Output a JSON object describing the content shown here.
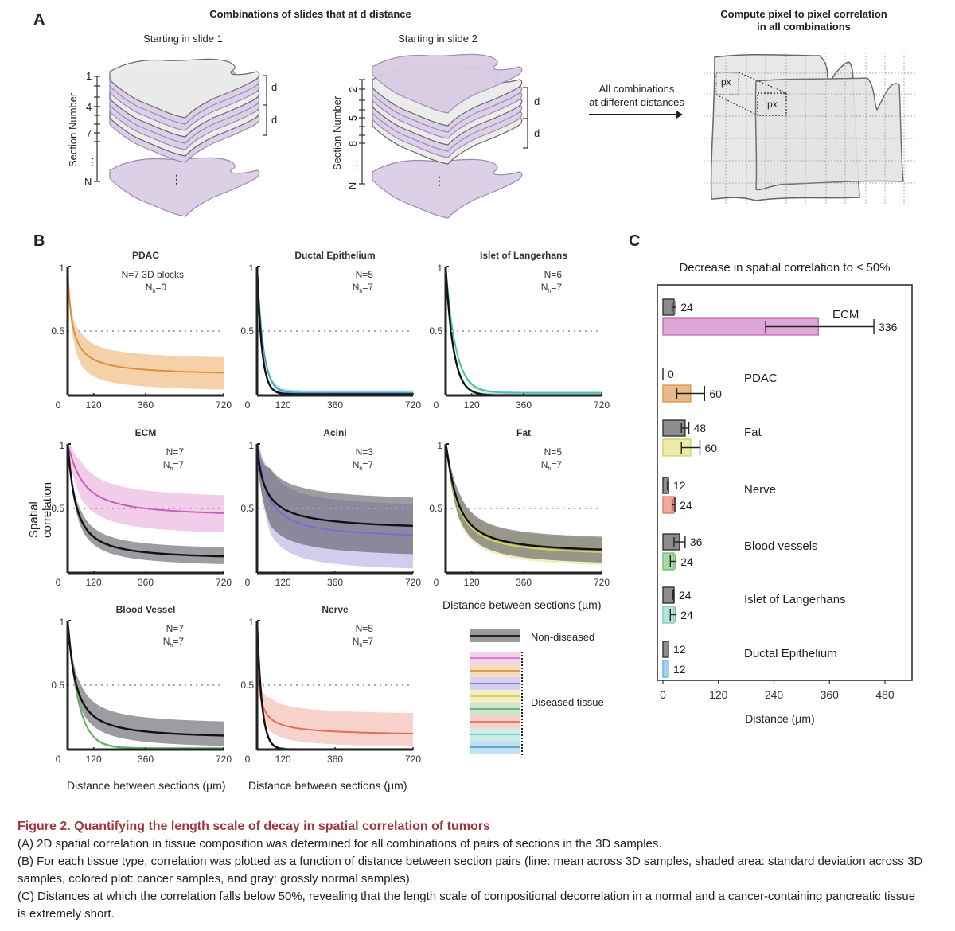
{
  "panel_a": {
    "letter": "A",
    "title_left": "Combinations of slides that at d distance",
    "stack1_title": "Starting in slide 1",
    "stack2_title": "Starting in slide 2",
    "section_axis_label": "Section Number",
    "stack1_ticks": [
      "1",
      "4",
      "7",
      "⋮",
      "N"
    ],
    "stack2_ticks": [
      "2",
      "5",
      "8",
      "⋮",
      "N"
    ],
    "d_label": "d",
    "arrow_text_line1": "All combinations",
    "arrow_text_line2": "at different distances",
    "title_right_line1": "Compute pixel to pixel correlation",
    "title_right_line2": "in all combinations",
    "px_label": "px"
  },
  "panel_b": {
    "letter": "B",
    "ylabel": "Spatial correlation",
    "xlabel": "Distance between sections (µm)",
    "legend": {
      "non_diseased": "Non-diseased",
      "diseased": "Diseased tissue",
      "diseased_colors": [
        "#d77fc8",
        "#e09a4a",
        "#8a78d0",
        "#d8d45a",
        "#6fb46f",
        "#e57a6a",
        "#6fc8b8",
        "#5aa8d8"
      ]
    }
  },
  "chart_data": [
    {
      "type": "line",
      "title": "PDAC",
      "note_n": "N=7 3D blocks",
      "note_nh": "N",
      "note_nh_sub": "h",
      "note_nh_val": "=0",
      "color": "#d9913a",
      "band_color": "#f2c99a",
      "x": [
        0,
        120,
        360,
        720
      ],
      "xticks": [
        "0",
        "120",
        "360",
        "720"
      ],
      "yticks": [
        "0.5",
        "1"
      ],
      "ylim": [
        0,
        1
      ],
      "xlim": [
        0,
        720
      ],
      "reference_line": 0.5,
      "series": [
        {
          "name": "Diseased",
          "mean": {
            "a": 0.12,
            "d0": 1.0,
            "tau": 25,
            "tail": 0.78
          },
          "band": [
            {
              "lo": 0.01,
              "hi": 0.26
            }
          ]
        }
      ],
      "diseased": {
        "start": 1.0,
        "end": 0.15,
        "at120": 0.28,
        "at360": 0.2,
        "band_lo_end": 0.02,
        "band_hi_end": 0.27
      },
      "non_diseased": null
    },
    {
      "type": "line",
      "title": "Ductal Epithelium",
      "note_n": "N=5",
      "note_nh": "N",
      "note_nh_sub": "h",
      "note_nh_val": "=7",
      "color": "#4aa3d8",
      "band_color": "#a8d4ee",
      "xticks": [
        "0",
        "120",
        "360",
        "720"
      ],
      "yticks": [
        "0.5",
        "1"
      ],
      "ylim": [
        0,
        1
      ],
      "xlim": [
        0,
        720
      ],
      "reference_line": 0.5,
      "diseased": {
        "start": 1.0,
        "end": 0.02,
        "at120": 0.05,
        "at360": 0.03,
        "band_lo_end": 0.0,
        "band_hi_end": 0.04,
        "k": 0.035
      },
      "non_diseased": {
        "start": 1.0,
        "end": 0.01,
        "at120": 0.03,
        "at360": 0.01,
        "band_lo_end": 0.0,
        "band_hi_end": 0.02,
        "k": 0.045
      }
    },
    {
      "type": "line",
      "title": "Islet of Langerhans",
      "note_n": "N=6",
      "note_nh": "N",
      "note_nh_sub": "h",
      "note_nh_val": "=7",
      "color": "#4dbfae",
      "band_color": "#b4e3dc",
      "xticks": [
        "0",
        "120",
        "360",
        "720"
      ],
      "yticks": [
        "0.5",
        "1"
      ],
      "ylim": [
        0,
        1
      ],
      "xlim": [
        0,
        720
      ],
      "reference_line": 0.5,
      "diseased": {
        "start": 1.0,
        "end": 0.02,
        "at120": 0.12,
        "at360": 0.03,
        "band_lo_end": 0.0,
        "band_hi_end": 0.03,
        "k": 0.022
      },
      "non_diseased": {
        "start": 1.0,
        "end": 0.0,
        "at120": 0.06,
        "at360": 0.0,
        "band_lo_end": 0.0,
        "band_hi_end": 0.01,
        "k": 0.028
      }
    },
    {
      "type": "line",
      "title": "ECM",
      "note_n": "N=7",
      "note_nh": "N",
      "note_nh_sub": "h",
      "note_nh_val": "=7",
      "color": "#c85fb4",
      "band_color": "#efc4e8",
      "xticks": [
        "0",
        "120",
        "360",
        "720"
      ],
      "yticks": [
        "0.5",
        "1"
      ],
      "ylim": [
        0,
        1
      ],
      "xlim": [
        0,
        720
      ],
      "reference_line": 0.5,
      "diseased": {
        "start": 1.0,
        "end": 0.43,
        "at120": 0.62,
        "at360": 0.5,
        "band_lo_end": 0.28,
        "band_hi_end": 0.57
      },
      "non_diseased": {
        "start": 1.0,
        "end": 0.1,
        "at120": 0.28,
        "at360": 0.16,
        "band_lo_end": 0.04,
        "band_hi_end": 0.17
      }
    },
    {
      "type": "line",
      "title": "Acini",
      "note_n": "N=3",
      "note_nh": "N",
      "note_nh_sub": "h",
      "note_nh_val": "=7",
      "color": "#7b6ad0",
      "band_color": "#cbc3ec",
      "xticks": [
        "0",
        "120",
        "360",
        "720"
      ],
      "yticks": [
        "0.5",
        "1"
      ],
      "ylim": [
        0,
        1
      ],
      "xlim": [
        0,
        720
      ],
      "reference_line": 0.5,
      "diseased": {
        "start": 1.0,
        "end": 0.26,
        "at120": 0.45,
        "at360": 0.33,
        "band_lo_end": 0.0,
        "band_hi_end": 0.5
      },
      "non_diseased": {
        "start": 1.0,
        "end": 0.32,
        "at120": 0.5,
        "at360": 0.4,
        "band_lo_end": 0.1,
        "band_hi_end": 0.54
      }
    },
    {
      "type": "line",
      "title": "Fat",
      "note_n": "N=5",
      "note_nh": "N",
      "note_nh_sub": "h",
      "note_nh_val": "=7",
      "color": "#d9d44a",
      "band_color": "#efedb8",
      "xticks": [
        "0",
        "120",
        "360",
        "720"
      ],
      "yticks": [
        "0.5",
        "1"
      ],
      "ylim": [
        0,
        1
      ],
      "xlim": [
        0,
        720
      ],
      "reference_line": 0.5,
      "diseased": {
        "start": 1.0,
        "end": 0.13,
        "at120": 0.35,
        "at360": 0.2,
        "band_lo_end": 0.03,
        "band_hi_end": 0.24
      },
      "non_diseased": {
        "start": 1.0,
        "end": 0.15,
        "at120": 0.37,
        "at360": 0.22,
        "band_lo_end": 0.05,
        "band_hi_end": 0.25
      }
    },
    {
      "type": "line",
      "title": "Blood Vessel",
      "note_n": "N=7",
      "note_nh": "N",
      "note_nh_sub": "h",
      "note_nh_val": "=7",
      "color": "#5fb060",
      "band_color": "#b9dfb6",
      "xticks": [
        "0",
        "120",
        "360",
        "720"
      ],
      "yticks": [
        "0.5",
        "1"
      ],
      "ylim": [
        0,
        1
      ],
      "xlim": [
        0,
        720
      ],
      "reference_line": 0.5,
      "diseased": {
        "start": 1.0,
        "end": 0.01,
        "at120": 0.1,
        "at360": 0.02,
        "band_lo_end": 0.0,
        "band_hi_end": 0.02,
        "k": 0.02
      },
      "non_diseased": {
        "start": 1.0,
        "end": 0.08,
        "at120": 0.26,
        "at360": 0.14,
        "band_lo_end": 0.0,
        "band_hi_end": 0.19
      }
    },
    {
      "type": "line",
      "title": "Nerve",
      "note_n": "N=5",
      "note_nh": "N",
      "note_nh_sub": "h",
      "note_nh_val": "=7",
      "color": "#e0705e",
      "band_color": "#f6cbc2",
      "xticks": [
        "0",
        "120",
        "360",
        "720"
      ],
      "yticks": [
        "0.5",
        "1"
      ],
      "ylim": [
        0,
        1
      ],
      "xlim": [
        0,
        720
      ],
      "reference_line": 0.5,
      "diseased": {
        "start": 1.0,
        "end": 0.1,
        "at120": 0.19,
        "at360": 0.14,
        "band_lo_end": 0.0,
        "band_hi_end": 0.26
      },
      "non_diseased": {
        "start": 1.0,
        "end": 0.0,
        "at120": 0.02,
        "at360": 0.0,
        "band_lo_end": 0.0,
        "band_hi_end": 0.01,
        "k": 0.045
      }
    },
    {
      "type": "bar",
      "orientation": "horizontal",
      "title": "Decrease in spatial correlation to ≤ 50%",
      "xlabel": "Distance (µm)",
      "xticks": [
        "0",
        "120",
        "240",
        "360",
        "480"
      ],
      "xlim": [
        0,
        480
      ],
      "categories": [
        "ECM",
        "PDAC",
        "Fat",
        "Nerve",
        "Blood vessels",
        "Islet of Langerhans",
        "Ductal Epithelium"
      ],
      "series": [
        {
          "name": "Non-diseased",
          "color": "#8c8c8c",
          "values": [
            24,
            0,
            48,
            12,
            36,
            24,
            12
          ],
          "err_lo": [
            20,
            0,
            40,
            10,
            24,
            22,
            12
          ],
          "err_hi": [
            28,
            0,
            56,
            12,
            48,
            24,
            12
          ]
        },
        {
          "name": "Diseased",
          "colors": [
            "#dfa6d8",
            "#e8b98a",
            "#ececa8",
            null,
            null,
            null,
            null
          ],
          "bar_colors": [
            "#dfa6d8",
            "#e8b98a",
            "#ececa8",
            "#f0aa9c",
            "#a9d9a6",
            "#b6e4dc",
            "#a8d0ec"
          ],
          "edge_colors": [
            "#c05fb0",
            "#d9913a",
            "#d0cc58",
            "#e0705e",
            "#6bb26b",
            "#6cc6b6",
            "#5aa8d8"
          ],
          "values": [
            336,
            60,
            60,
            24,
            24,
            24,
            12
          ],
          "err_lo": [
            222,
            30,
            40,
            20,
            16,
            16,
            12
          ],
          "err_hi": [
            456,
            90,
            80,
            26,
            28,
            28,
            12
          ]
        }
      ],
      "value_labels": {
        "non_diseased": [
          "24",
          "0",
          "48",
          "12",
          "36",
          "24",
          "12"
        ],
        "diseased": [
          "336",
          "60",
          "60",
          "24",
          "24",
          "24",
          "12"
        ]
      }
    }
  ],
  "panel_c": {
    "letter": "C"
  },
  "caption": {
    "title": "Figure 2.  Quantifying the length scale of decay in spatial correlation of tumors",
    "line_a": "(A) 2D spatial correlation in tissue composition was determined for all combinations of pairs of sections in the 3D samples.",
    "line_b": "(B) For each tissue type, correlation was plotted as a function of distance between section pairs (line: mean across 3D samples, shaded area: standard deviation across 3D samples, colored plot: cancer samples, and gray: grossly normal samples).",
    "line_c": "(C) Distances at which the correlation falls below 50%, revealing that the length scale of compositional decorrelation in a normal and a cancer-containing pancreatic tissue is extremely short."
  }
}
